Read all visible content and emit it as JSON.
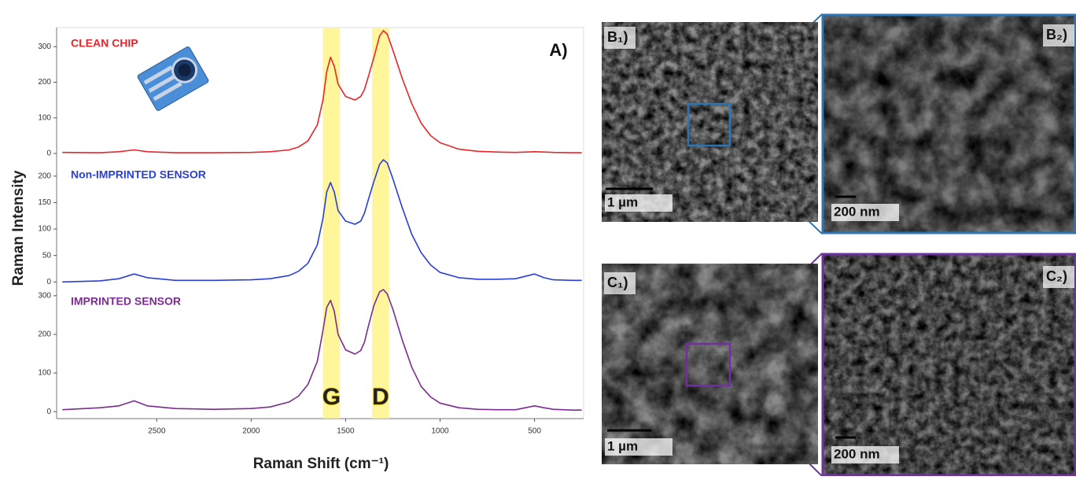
{
  "chart_data": [
    {
      "type": "line",
      "x": [
        3000,
        2800,
        2700,
        2620,
        2550,
        2400,
        2200,
        2000,
        1900,
        1800,
        1750,
        1700,
        1650,
        1620,
        1600,
        1580,
        1560,
        1540,
        1500,
        1450,
        1420,
        1400,
        1380,
        1350,
        1320,
        1300,
        1280,
        1250,
        1200,
        1150,
        1100,
        1050,
        1000,
        900,
        800,
        700,
        600,
        500,
        450,
        400,
        300,
        250
      ],
      "series": [
        {
          "name": "CLEAN CHIP",
          "color": "#e8262a",
          "values": [
            3,
            2,
            5,
            10,
            5,
            2,
            2,
            3,
            5,
            10,
            18,
            35,
            80,
            150,
            230,
            270,
            245,
            195,
            160,
            150,
            160,
            180,
            215,
            270,
            330,
            345,
            335,
            290,
            210,
            140,
            85,
            50,
            30,
            12,
            6,
            4,
            3,
            5,
            4,
            3,
            2,
            2
          ]
        }
      ],
      "xlim": [
        3030,
        240
      ],
      "ylim": [
        -11,
        347
      ],
      "yticks": [
        0,
        100,
        200,
        300
      ]
    },
    {
      "type": "line",
      "x": [
        3000,
        2800,
        2700,
        2620,
        2550,
        2400,
        2200,
        2000,
        1900,
        1800,
        1750,
        1700,
        1650,
        1620,
        1600,
        1580,
        1560,
        1540,
        1500,
        1450,
        1420,
        1400,
        1380,
        1350,
        1320,
        1300,
        1280,
        1250,
        1200,
        1150,
        1100,
        1050,
        1000,
        900,
        800,
        700,
        600,
        500,
        450,
        400,
        300,
        250
      ],
      "series": [
        {
          "name": "Non-IMPRINTED SENSOR",
          "color": "#2a3fd6",
          "values": [
            0,
            2,
            6,
            15,
            8,
            3,
            3,
            4,
            6,
            12,
            20,
            35,
            70,
            120,
            170,
            188,
            170,
            135,
            115,
            109,
            115,
            130,
            155,
            190,
            222,
            231,
            225,
            195,
            140,
            90,
            55,
            32,
            18,
            8,
            5,
            5,
            6,
            15,
            8,
            4,
            3,
            3
          ]
        }
      ],
      "xlim": [
        3030,
        240
      ],
      "ylim": [
        -10,
        228
      ],
      "yticks": [
        0,
        50,
        100,
        150,
        200
      ]
    },
    {
      "type": "line",
      "x": [
        3000,
        2800,
        2700,
        2620,
        2550,
        2400,
        2200,
        2000,
        1900,
        1800,
        1750,
        1700,
        1650,
        1620,
        1600,
        1580,
        1560,
        1540,
        1500,
        1450,
        1420,
        1400,
        1380,
        1350,
        1320,
        1300,
        1280,
        1250,
        1200,
        1150,
        1100,
        1050,
        1000,
        900,
        800,
        700,
        600,
        500,
        450,
        400,
        300,
        250
      ],
      "series": [
        {
          "name": "IMPRINTED SENSOR",
          "color": "#7b2c8f",
          "values": [
            5,
            10,
            15,
            28,
            15,
            8,
            6,
            8,
            12,
            25,
            40,
            70,
            130,
            210,
            270,
            288,
            260,
            200,
            160,
            149,
            158,
            180,
            220,
            275,
            310,
            316,
            305,
            265,
            185,
            115,
            65,
            38,
            22,
            10,
            6,
            5,
            5,
            15,
            10,
            6,
            4,
            4
          ]
        }
      ],
      "xlim": [
        3030,
        240
      ],
      "ylim": [
        -14,
        320
      ],
      "yticks": [
        0,
        100,
        200,
        300
      ],
      "xticks": [
        2500,
        2000,
        1500,
        1000,
        500
      ]
    }
  ],
  "annotations": {
    "panel_label": "A)",
    "y_label": "Raman Intensity",
    "x_label": "Raman Shift (cm⁻¹)"
  },
  "highlight_bands": [
    {
      "label": "G",
      "range": [
        1620,
        1530
      ]
    },
    {
      "label": "D",
      "range": [
        1360,
        1270
      ]
    }
  ],
  "micrographs": [
    {
      "label": "B₁)",
      "scale": "1 µm"
    },
    {
      "label": "B₂)",
      "scale": "200 nm"
    },
    {
      "label": "C₁)",
      "scale": "1 µm"
    },
    {
      "label": "C₂)",
      "scale": "200 nm"
    }
  ]
}
